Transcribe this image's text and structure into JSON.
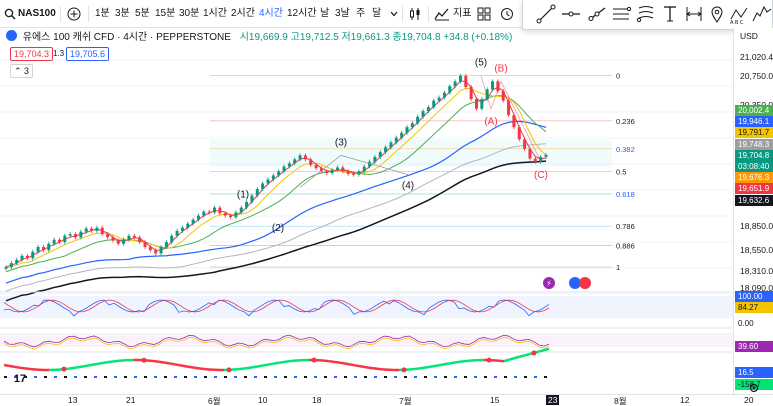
{
  "toolbar": {
    "symbol": "NAS100",
    "intervals": [
      "1분",
      "3분",
      "5분",
      "15분",
      "30분",
      "1시간",
      "2시간",
      "4시간",
      "12시간",
      "날",
      "3날",
      "주",
      "달"
    ],
    "active_interval": "4시간",
    "indicators_label": "지표"
  },
  "legend": {
    "title": "유에스 100 캐쉬 CFD · 4시간 · PEPPERSTONE",
    "ohlc": "시19,669.9  고19,712.5  저19,661.3  종19,704.8 +34.8 (+0.18%)",
    "sell_price": "19,704.3",
    "spread": "1.3",
    "buy_price": "19,705.6",
    "collapsed_count": "3"
  },
  "waves": [
    "(1)",
    "(2)",
    "(3)",
    "(4)",
    "(5)",
    "(A)",
    "(B)",
    "(C)"
  ],
  "fib_levels": [
    "0",
    "0.236",
    "0.382",
    "0.5",
    "0.618",
    "0.786",
    "0.886",
    "1"
  ],
  "price_scale": {
    "currency": "USD",
    "labels": [
      "21,020.4",
      "20,750.0",
      "20,350.0",
      "18,850.0",
      "18,550.0",
      "18,310.0",
      "18,090.0"
    ],
    "tags": [
      {
        "value": "20,002.4",
        "color": "#4caf50"
      },
      {
        "value": "19,946.1",
        "color": "#2962ff"
      },
      {
        "value": "19,791.7",
        "color": "#f5c400"
      },
      {
        "value": "19,748.3",
        "color": "#9e9e9e"
      },
      {
        "value": "19,704.8",
        "color": "#089981"
      },
      {
        "value": "03:08:40",
        "color": "#089981"
      },
      {
        "value": "19,676.3",
        "color": "#ff9800"
      },
      {
        "value": "19,651.9",
        "color": "#f23645"
      },
      {
        "value": "19,632.6",
        "color": "#131722"
      }
    ],
    "osc1": [
      "100.00",
      "84.27",
      "0.00"
    ],
    "osc2": "39.60",
    "osc3": [
      "16.5",
      "-158.7"
    ]
  },
  "time_axis": [
    "13",
    "21",
    "6월",
    "10",
    "18",
    "7월",
    "15",
    "23",
    "8월",
    "12",
    "20"
  ],
  "chart_data": {
    "type": "line",
    "waves": [
      {
        "label": "(1)",
        "y": 19050
      },
      {
        "label": "(2)",
        "y": 18930
      },
      {
        "label": "(3)",
        "y": 19700
      },
      {
        "label": "(4)",
        "y": 19460
      },
      {
        "label": "(5)",
        "y": 20690
      },
      {
        "label": "(A)",
        "y": 20280
      },
      {
        "label": "(B)",
        "y": 20620
      },
      {
        "label": "(C)",
        "y": 19620
      }
    ],
    "close": [
      18310,
      18360,
      18400,
      18450,
      18420,
      18500,
      18560,
      18520,
      18600,
      18650,
      18620,
      18700,
      18720,
      18680,
      18750,
      18790,
      18760,
      18800,
      18720,
      18680,
      18640,
      18600,
      18650,
      18700,
      18680,
      18620,
      18560,
      18520,
      18480,
      18560,
      18620,
      18700,
      18760,
      18800,
      18850,
      18900,
      18950,
      19000,
      18990,
      19050,
      18980,
      18950,
      18930,
      18990,
      19050,
      19120,
      19200,
      19280,
      19350,
      19400,
      19450,
      19500,
      19560,
      19600,
      19650,
      19700,
      19650,
      19580,
      19540,
      19500,
      19480,
      19520,
      19550,
      19500,
      19470,
      19460,
      19500,
      19560,
      19620,
      19680,
      19740,
      19800,
      19860,
      19920,
      19980,
      20050,
      20100,
      20180,
      20250,
      20300,
      20380,
      20420,
      20480,
      20560,
      20620,
      20690,
      20550,
      20400,
      20280,
      20400,
      20520,
      20620,
      20500,
      20380,
      20200,
      20050,
      19900,
      19780,
      19660,
      19620,
      19680,
      19704.8
    ]
  }
}
